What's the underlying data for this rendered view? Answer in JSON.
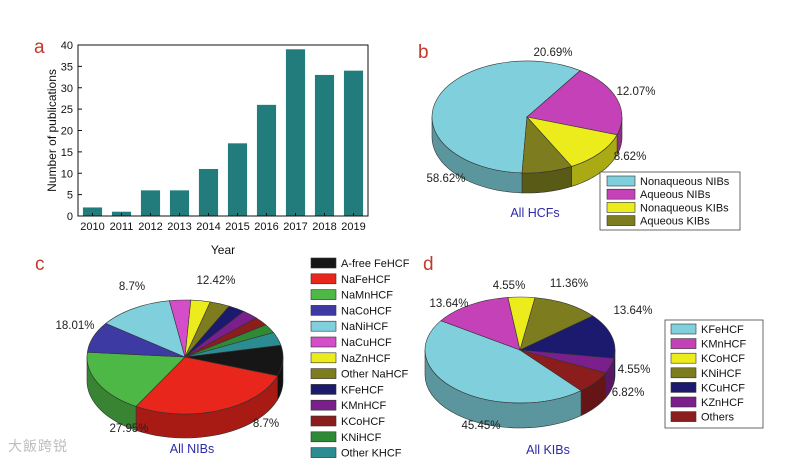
{
  "chart_data": [
    {
      "panel": "a",
      "type": "bar",
      "categories": [
        "2010",
        "2011",
        "2012",
        "2013",
        "2014",
        "2015",
        "2016",
        "2017",
        "2018",
        "2019"
      ],
      "values": [
        2,
        1,
        6,
        6,
        11,
        17,
        26,
        39,
        33,
        34
      ],
      "xlabel": "Year",
      "ylabel": "Number of publications",
      "ylim": [
        0,
        40
      ],
      "yticks": [
        0,
        5,
        10,
        15,
        20,
        25,
        30,
        35,
        40
      ],
      "color": "#227c7c"
    },
    {
      "panel": "b",
      "type": "pie",
      "caption": "All HCFs",
      "slices": [
        {
          "label": "Nonaqueous NIBs",
          "value": 58.62,
          "text": "58.62%",
          "color": "#7fd0dc"
        },
        {
          "label": "Aqueous NIBs",
          "value": 20.69,
          "text": "20.69%",
          "color": "#c541b7"
        },
        {
          "label": "Nonaqueous KIBs",
          "value": 12.07,
          "text": "12.07%",
          "color": "#ecec1c"
        },
        {
          "label": "Aqueous KIBs",
          "value": 8.62,
          "text": "8.62%",
          "color": "#7d7d20"
        }
      ]
    },
    {
      "panel": "c",
      "type": "pie",
      "caption": "All NIBs",
      "slices": [
        {
          "label": "A-free FeHCF",
          "value": 8.7,
          "text": "8.7%",
          "color": "#161616"
        },
        {
          "label": "NaFeHCF",
          "value": 27.95,
          "text": "27.95%",
          "color": "#e8261c"
        },
        {
          "label": "NaMnHCF",
          "value": 18.01,
          "text": "18.01%",
          "color": "#4eb846"
        },
        {
          "label": "NaCoHCF",
          "value": 8.7,
          "text": "8.7%",
          "color": "#3d3aa3"
        },
        {
          "label": "NaNiHCF",
          "value": 12.42,
          "text": "12.42%",
          "color": "#7fd0dc"
        },
        {
          "label": "NaCuHCF",
          "value": 3.5,
          "text": "",
          "color": "#d34ec8"
        },
        {
          "label": "NaZnHCF",
          "value": 3.2,
          "text": "",
          "color": "#ecec1c"
        },
        {
          "label": "Other NaHCF",
          "value": 3.3,
          "text": "",
          "color": "#7d7d20"
        },
        {
          "label": "KFeHCF",
          "value": 2.8,
          "text": "",
          "color": "#1c1a6e"
        },
        {
          "label": "KMnHCF",
          "value": 2.7,
          "text": "",
          "color": "#7b1f8c"
        },
        {
          "label": "KCoHCF",
          "value": 2.5,
          "text": "",
          "color": "#8c1d1d"
        },
        {
          "label": "KNiHCF",
          "value": 2.5,
          "text": "",
          "color": "#2f8a36"
        },
        {
          "label": "Other KHCF",
          "value": 3.72,
          "text": "",
          "color": "#2b8d91"
        }
      ]
    },
    {
      "panel": "d",
      "type": "pie",
      "caption": "All KIBs",
      "slices": [
        {
          "label": "KFeHCF",
          "value": 45.45,
          "text": "45.45%",
          "color": "#7fd0dc"
        },
        {
          "label": "KMnHCF",
          "value": 13.64,
          "text": "13.64%",
          "color": "#c541b7"
        },
        {
          "label": "KCoHCF",
          "value": 4.55,
          "text": "4.55%",
          "color": "#ecec1c"
        },
        {
          "label": "KNiHCF",
          "value": 11.36,
          "text": "11.36%",
          "color": "#7d7d20"
        },
        {
          "label": "KCuHCF",
          "value": 13.64,
          "text": "13.64%",
          "color": "#1c1a6e"
        },
        {
          "label": "KZnHCF",
          "value": 4.55,
          "text": "4.55%",
          "color": "#7b1f8c"
        },
        {
          "label": "Others",
          "value": 6.82,
          "text": "6.82%",
          "color": "#8c1d1d"
        }
      ]
    }
  ],
  "watermark": "大飯跨锐"
}
